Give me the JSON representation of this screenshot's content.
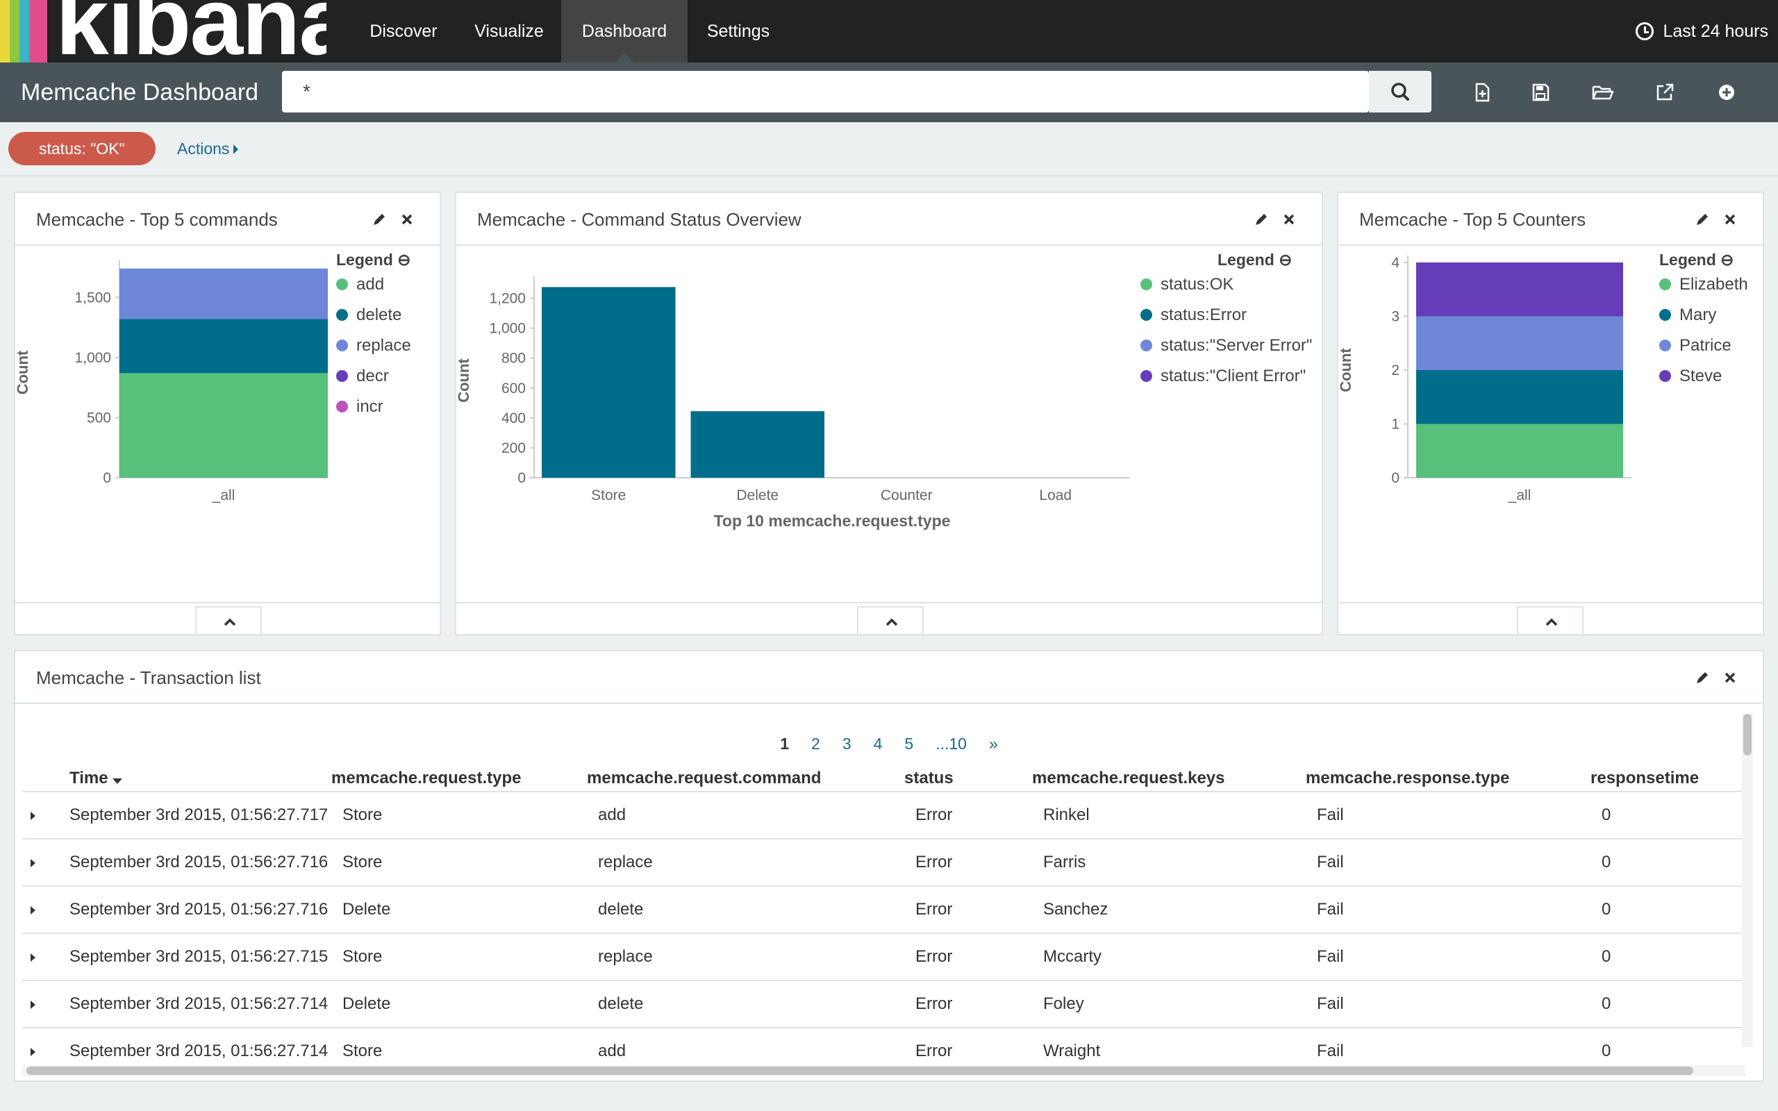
{
  "topnav": {
    "logo_text": "kibana",
    "logo_colors": [
      "#e8d93b",
      "#8dc63f",
      "#3ab5c5",
      "#e44d8d"
    ],
    "tabs": [
      {
        "label": "Discover",
        "active": false
      },
      {
        "label": "Visualize",
        "active": false
      },
      {
        "label": "Dashboard",
        "active": true
      },
      {
        "label": "Settings",
        "active": false
      }
    ],
    "time_icon": "clock-icon",
    "time_label": "Last 24 hours"
  },
  "subnav": {
    "title": "Memcache Dashboard",
    "search_value": "*",
    "search_icon": "search-icon",
    "tools": [
      "new-dashboard-icon",
      "save-icon",
      "open-folder-icon",
      "share-icon",
      "add-panel-icon"
    ]
  },
  "filterbar": {
    "filter": "status: \"OK\"",
    "actions_label": "Actions"
  },
  "colors": {
    "green": "#57c17b",
    "teal": "#006e8a",
    "blue": "#6f87d8",
    "purple": "#663db8",
    "pink": "#bc52bc",
    "filter_red": "#cc5a4b",
    "link": "#1b6a8b"
  },
  "panels": {
    "top_commands": {
      "title": "Memcache - Top 5 commands"
    },
    "status_overview": {
      "title": "Memcache - Command Status Overview"
    },
    "top_counters": {
      "title": "Memcache - Top 5 Counters"
    },
    "transactions": {
      "title": "Memcache - Transaction list"
    }
  },
  "chart_data": [
    {
      "id": "top_commands",
      "type": "bar",
      "stacked": true,
      "categories": [
        "_all"
      ],
      "ylabel": "Count",
      "ylim": [
        0,
        1750
      ],
      "yticks": [
        0,
        500,
        1000,
        1500
      ],
      "ytick_labels": [
        "0",
        "500",
        "1,000",
        "1,500"
      ],
      "legend_title": "Legend",
      "series": [
        {
          "name": "add",
          "color": "#57c17b",
          "values": [
            870
          ]
        },
        {
          "name": "delete",
          "color": "#006e8a",
          "values": [
            450
          ]
        },
        {
          "name": "replace",
          "color": "#6f87d8",
          "values": [
            420
          ]
        },
        {
          "name": "decr",
          "color": "#663db8",
          "values": [
            0
          ]
        },
        {
          "name": "incr",
          "color": "#bc52bc",
          "values": [
            0
          ]
        }
      ]
    },
    {
      "id": "status_overview",
      "type": "bar",
      "stacked": true,
      "categories": [
        "Store",
        "Delete",
        "Counter",
        "Load"
      ],
      "xlabel": "Top 10 memcache.request.type",
      "ylabel": "Count",
      "ylim": [
        0,
        1300
      ],
      "yticks": [
        0,
        200,
        400,
        600,
        800,
        1000,
        1200
      ],
      "ytick_labels": [
        "0",
        "200",
        "400",
        "600",
        "800",
        "1,000",
        "1,200"
      ],
      "legend_title": "Legend",
      "series": [
        {
          "name": "status:OK",
          "color": "#57c17b",
          "values": [
            0,
            0,
            0,
            0
          ]
        },
        {
          "name": "status:Error",
          "color": "#006e8a",
          "values": [
            1275,
            445,
            0,
            0
          ]
        },
        {
          "name": "status:\"Server Error\"",
          "color": "#6f87d8",
          "values": [
            0,
            0,
            0,
            0
          ]
        },
        {
          "name": "status:\"Client Error\"",
          "color": "#663db8",
          "values": [
            0,
            0,
            0,
            0
          ]
        }
      ]
    },
    {
      "id": "top_counters",
      "type": "bar",
      "stacked": true,
      "categories": [
        "_all"
      ],
      "ylabel": "Count",
      "ylim": [
        0,
        4
      ],
      "yticks": [
        0,
        1,
        2,
        3,
        4
      ],
      "ytick_labels": [
        "0",
        "1",
        "2",
        "3",
        "4"
      ],
      "legend_title": "Legend",
      "series": [
        {
          "name": "Elizabeth",
          "color": "#57c17b",
          "values": [
            1
          ]
        },
        {
          "name": "Mary",
          "color": "#006e8a",
          "values": [
            1
          ]
        },
        {
          "name": "Patrice",
          "color": "#6f87d8",
          "values": [
            1
          ]
        },
        {
          "name": "Steve",
          "color": "#663db8",
          "values": [
            1
          ]
        }
      ]
    }
  ],
  "transactions": {
    "pager": [
      "1",
      "2",
      "3",
      "4",
      "5",
      "...10",
      "»"
    ],
    "current_page": "1",
    "columns": [
      "Time",
      "memcache.request.type",
      "memcache.request.command",
      "status",
      "memcache.request.keys",
      "memcache.response.type",
      "responsetime"
    ],
    "rows": [
      [
        "September 3rd 2015, 01:56:27.717",
        "Store",
        "add",
        "Error",
        "Rinkel",
        "Fail",
        "0"
      ],
      [
        "September 3rd 2015, 01:56:27.716",
        "Store",
        "replace",
        "Error",
        "Farris",
        "Fail",
        "0"
      ],
      [
        "September 3rd 2015, 01:56:27.716",
        "Delete",
        "delete",
        "Error",
        "Sanchez",
        "Fail",
        "0"
      ],
      [
        "September 3rd 2015, 01:56:27.715",
        "Store",
        "replace",
        "Error",
        "Mccarty",
        "Fail",
        "0"
      ],
      [
        "September 3rd 2015, 01:56:27.714",
        "Delete",
        "delete",
        "Error",
        "Foley",
        "Fail",
        "0"
      ],
      [
        "September 3rd 2015, 01:56:27.714",
        "Store",
        "add",
        "Error",
        "Wraight",
        "Fail",
        "0"
      ]
    ]
  }
}
